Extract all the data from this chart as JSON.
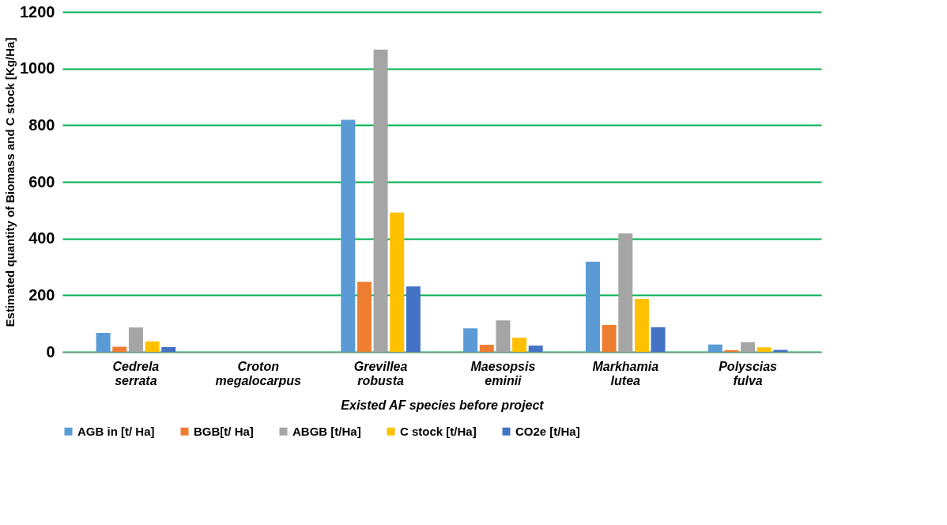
{
  "chart_data": {
    "type": "bar",
    "xlabel": "Existed AF species before project",
    "ylabel": "Estimated quantity of Biomass and C stock [Kg/Ha]",
    "categories": [
      "Cedrela serrata",
      "Croton megalocarpus",
      "Grevillea robusta",
      "Maesopsis eminii",
      "Markhamia lutea",
      "Polyscias fulva"
    ],
    "series": [
      {
        "name": "AGB in [t/ Ha]",
        "color": "#5b9bd5",
        "values": [
          67,
          0,
          819,
          83,
          318,
          26
        ]
      },
      {
        "name": "BGB[t/ Ha]",
        "color": "#ed7d31",
        "values": [
          18,
          0,
          247,
          25,
          95,
          6
        ]
      },
      {
        "name": "ABGB [t/Ha]",
        "color": "#a5a5a5",
        "values": [
          86,
          0,
          1067,
          111,
          418,
          34
        ]
      },
      {
        "name": "C stock [t/Ha]",
        "color": "#ffc000",
        "values": [
          37,
          0,
          492,
          50,
          187,
          16
        ]
      },
      {
        "name": "CO2e [t/Ha]",
        "color": "#4472c4",
        "values": [
          17,
          0,
          231,
          22,
          87,
          7
        ]
      }
    ],
    "ylim": [
      0,
      1200
    ],
    "yticks": [
      0,
      200,
      400,
      600,
      800,
      1000,
      1200
    ],
    "grid": "y",
    "legend": "bottom"
  }
}
